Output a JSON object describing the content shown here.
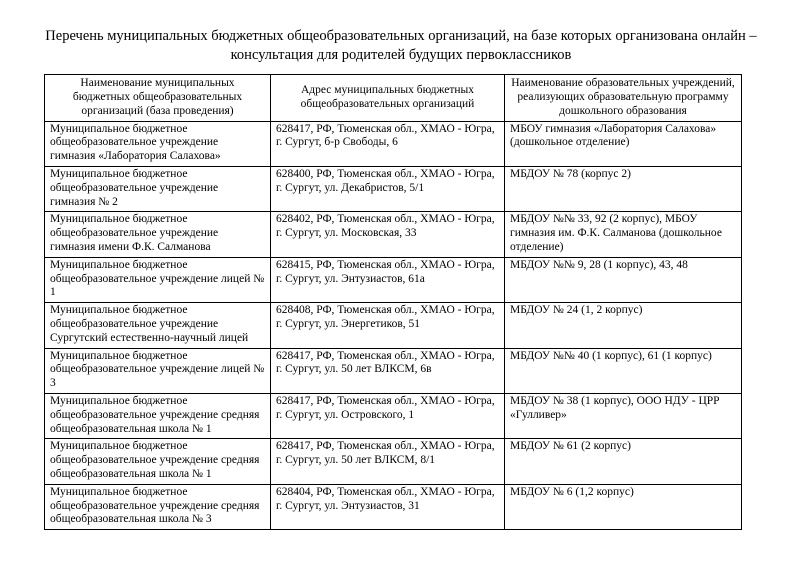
{
  "title": "Перечень муниципальных бюджетных общеобразовательных организаций, на базе которых организована онлайн – консультация для родителей будущих первоклассников",
  "table": {
    "headers": [
      "Наименование муниципальных бюджетных общеобразовательных организаций (база проведения)",
      "Адрес муниципальных бюджетных общеобразовательных организаций",
      "Наименование образовательных учреждений, реализующих образовательную программу дошкольного образования"
    ],
    "rows": [
      {
        "org": "Муниципальное бюджетное общеобразовательное учреждение гимназия «Лаборатория Салахова»",
        "address": "628417, РФ, Тюменская обл., ХМАО - Югра, г. Сургут, б-р Свободы, 6",
        "preschool": "МБОУ гимназия «Лаборатория Салахова» (дошкольное отделение)"
      },
      {
        "org": "Муниципальное бюджетное общеобразовательное учреждение гимназия № 2",
        "address": "628400, РФ, Тюменская обл., ХМАО - Югра, г. Сургут, ул. Декабристов, 5/1",
        "preschool": "МБДОУ № 78 (корпус 2)"
      },
      {
        "org": "Муниципальное бюджетное общеобразовательное учреждение гимназия имени Ф.К. Салманова",
        "address": "628402, РФ, Тюменская обл., ХМАО - Югра, г. Сургут, ул. Московская, 33",
        "preschool": "МБДОУ №№ 33, 92 (2 корпус), МБОУ гимназия им. Ф.К. Салманова (дошкольное отделение)"
      },
      {
        "org": "Муниципальное бюджетное общеобразовательное учреждение лицей № 1",
        "address": "628415, РФ, Тюменская обл., ХМАО - Югра, г. Сургут, ул. Энтузиастов, 61а",
        "preschool": "МБДОУ №№ 9, 28 (1 корпус), 43, 48"
      },
      {
        "org": "Муниципальное бюджетное общеобразовательное учреждение Сургутский естественно-научный лицей",
        "address": "628408, РФ, Тюменская обл., ХМАО - Югра, г. Сургут, ул. Энергетиков, 51",
        "preschool": "МБДОУ № 24 (1, 2 корпус)"
      },
      {
        "org": "Муниципальное бюджетное общеобразовательное учреждение лицей № 3",
        "address": "628417, РФ, Тюменская обл., ХМАО - Югра, г. Сургут, ул. 50 лет ВЛКСМ, 6в",
        "preschool": "МБДОУ №№ 40 (1 корпус), 61 (1 корпус)"
      },
      {
        "org": "Муниципальное бюджетное общеобразовательное учреждение средняя общеобразовательная школа № 1",
        "address": "628417, РФ, Тюменская обл., ХМАО - Югра, г. Сургут, ул. Островского, 1",
        "preschool": "МБДОУ № 38 (1 корпус), ООО НДУ - ЦРР «Гулливер»"
      },
      {
        "org": "Муниципальное бюджетное общеобразовательное учреждение средняя общеобразовательная школа № 1",
        "address": "628417, РФ, Тюменская обл., ХМАО - Югра, г. Сургут, ул. 50 лет ВЛКСМ, 8/1",
        "preschool": "МБДОУ № 61 (2 корпус)"
      },
      {
        "org": "Муниципальное бюджетное общеобразовательное учреждение средняя общеобразовательная школа № 3",
        "address": "628404, РФ, Тюменская обл., ХМАО - Югра, г. Сургут, ул. Энтузиастов, 31",
        "preschool": "МБДОУ № 6 (1,2 корпус)"
      }
    ]
  }
}
